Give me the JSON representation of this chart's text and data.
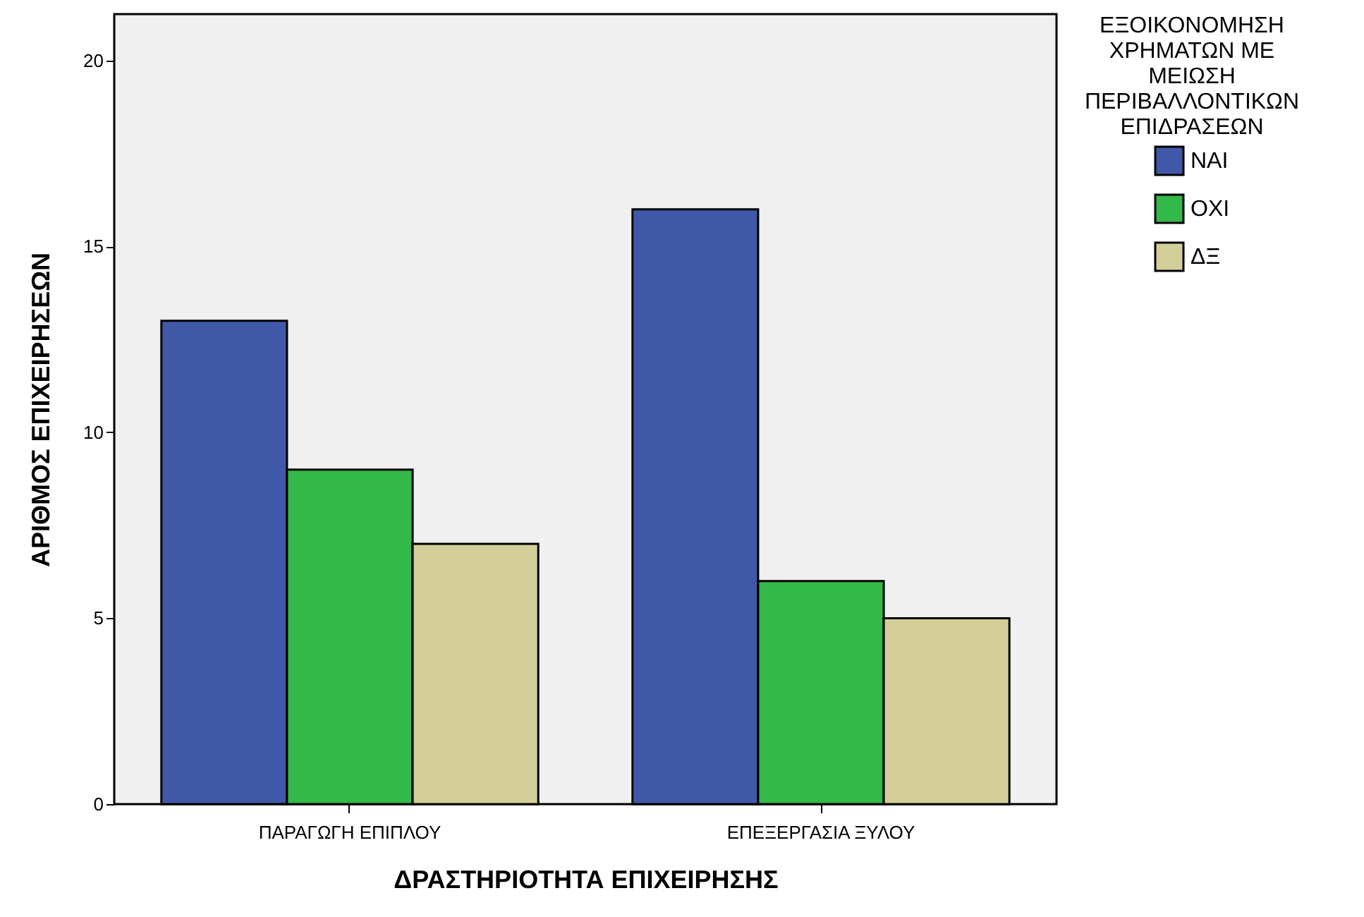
{
  "chart_data": {
    "type": "bar",
    "xlabel": "ΔΡΑΣΤΗΡΙΟΤΗΤΑ ΕΠΙΧΕΙΡΗΣΗΣ",
    "ylabel": "ΑΡΙΘΜΟΣ ΕΠΙΧΕΙΡΗΣΕΩΝ",
    "legend_title": "ΕΞΟΙΚΟΝΟΜΗΣΗ ΧΡΗΜΑΤΩΝ ΜΕ ΜΕΙΩΣΗ ΠΕΡΙΒΑΛΛΟΝΤΙΚΩΝ ΕΠΙΔΡΑΣΕΩΝ",
    "categories": [
      "ΠΑΡΑΓΩΓΗ ΕΠΙΠΛΟΥ",
      "ΕΠΕΞΕΡΓΑΣΙΑ ΞΥΛΟΥ"
    ],
    "series": [
      {
        "name": "ΝΑΙ",
        "color": "#3f58a8",
        "values": [
          13,
          16
        ]
      },
      {
        "name": "ΟΧΙ",
        "color": "#33b84a",
        "values": [
          9,
          6
        ]
      },
      {
        "name": "ΔΞ",
        "color": "#d4cf99",
        "values": [
          7,
          5
        ]
      }
    ],
    "ylim": [
      0,
      21.25
    ],
    "yticks": [
      0,
      5,
      10,
      15,
      20
    ],
    "grid": false,
    "legend": "top right"
  }
}
